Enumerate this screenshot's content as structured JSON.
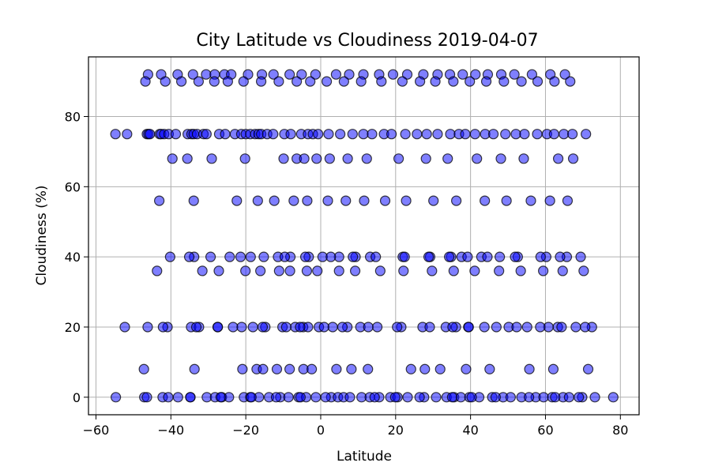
{
  "chart_data": {
    "type": "scatter",
    "title": "City Latitude vs Cloudiness 2019-04-07",
    "xlabel": "Latitude",
    "ylabel": "Cloudiness (%)",
    "xlim": [
      -62,
      85
    ],
    "ylim": [
      -5,
      97
    ],
    "xticks": [
      -60,
      -40,
      -20,
      0,
      20,
      40,
      60,
      80
    ],
    "yticks": [
      0,
      20,
      40,
      60,
      80
    ],
    "xtick_labels": [
      "−60",
      "−40",
      "−20",
      "0",
      "20",
      "40",
      "60",
      "80"
    ],
    "ytick_labels": [
      "0",
      "20",
      "40",
      "60",
      "80"
    ],
    "grid": true,
    "marker_fill": "#0000ff",
    "marker_opacity": 0.5,
    "marker_edge": "#000000",
    "x": [
      -54.8,
      -51.7,
      -46.4,
      -46,
      -45.6,
      -43,
      -42.6,
      -41.8,
      -40.6,
      -38.7,
      -35.5,
      -34.5,
      -33.9,
      -33,
      -31.3,
      -30.5,
      -27.1,
      -25.5,
      -22.9,
      -21.2,
      -20,
      -18.8,
      -17.5,
      -16.6,
      -15.9,
      -14.3,
      -12.7,
      -9.7,
      -8,
      -5.2,
      -3.4,
      -2.1,
      -0.7,
      2.1,
      5.2,
      8.5,
      11.4,
      13.7,
      16.9,
      18.9,
      22.6,
      25.7,
      28.3,
      31.2,
      34.6,
      36.9,
      38.6,
      41.2,
      43.9,
      46.1,
      49.3,
      52.1,
      54.4,
      57.8,
      60.4,
      62.3,
      64.9,
      67.2,
      70.8,
      -54.7,
      -47.1,
      -42.2,
      -40.7,
      -38.1,
      -34.8,
      -30.4,
      -28.2,
      -26.4,
      -24.5,
      -20.5,
      -18.8,
      -16.5,
      -13.8,
      -10.8,
      -8.6,
      -5.9,
      -3.9,
      -1.3,
      2.8,
      4.6,
      6.1,
      10.9,
      13.1,
      15.6,
      18.6,
      20.5,
      23.2,
      27.6,
      30.8,
      33.6,
      35.6,
      37.4,
      39.7,
      42.3,
      45.8,
      48.7,
      50.7,
      53.6,
      57.4,
      59.5,
      61.8,
      64.7,
      66.3,
      69.8,
      73.2,
      78.1,
      -46.4,
      -34.8,
      -26.7,
      -18.5,
      -11.9,
      -5.4,
      1.3,
      7.8,
      14.4,
      19.9,
      26.4,
      35.1,
      40.3,
      46.7,
      55.6,
      62.6,
      68.9,
      -52.3,
      -40.9,
      -34.6,
      -32.5,
      -27.5,
      -23.4,
      -18.1,
      -14.8,
      -10.2,
      -6.8,
      -4.7,
      -3.4,
      -0.5,
      3.2,
      7.1,
      10.6,
      15.1,
      21.5,
      27.2,
      33.4,
      36.1,
      39.4,
      43.7,
      50.2,
      55.1,
      60.8,
      63.3,
      68.1,
      72.4,
      -40.2,
      -33.8,
      -24.3,
      -18.7,
      -11.4,
      -8.1,
      -3.2,
      0.5,
      4.9,
      9.3,
      13.2,
      21.9,
      29.2,
      34.8,
      37.6,
      42.9,
      47.8,
      52.6,
      60.2,
      65.7,
      -35.1,
      -29.4,
      -21.4,
      -15.2,
      -9.6,
      -4.1,
      2.7,
      8.6,
      14.7,
      22.4,
      28.8,
      34.3,
      39.2,
      44.5,
      51.9,
      58.7,
      63.9,
      69.4,
      -47.2,
      -33.7,
      -20.9,
      -17.1,
      -15.4,
      -11.7,
      -8.3,
      -4.6,
      -2.4,
      4.2,
      8.2,
      12.6,
      24.1,
      27.8,
      31.9,
      38.8,
      45.1,
      55.7,
      62.1,
      71.4,
      -46.2,
      -42.1,
      -33.2,
      -27.5,
      -21.1,
      -15.5,
      -9.2,
      -5.5,
      0.9,
      5.8,
      12.7,
      20.4,
      29.1,
      35.2,
      39.5,
      46.9,
      52.3,
      58.6,
      64.3,
      70.6,
      -46.1,
      -42.6,
      -38.2,
      -34.1,
      -30.6,
      -28.3,
      -25.7,
      -23.9,
      -19.4,
      -15.7,
      -12.6,
      -8.3,
      -5.1,
      -1.4,
      4.1,
      7.6,
      11.4,
      15.6,
      19.3,
      23.1,
      27.4,
      31.2,
      34.5,
      37.9,
      41.3,
      44.6,
      48.2,
      51.7,
      56.4,
      61.3,
      65.2,
      -46.8,
      -41.5,
      -37.2,
      -32.6,
      -28.4,
      -24.8,
      -20.6,
      -15.9,
      -11.2,
      -6.4,
      -2.8,
      1.6,
      6.2,
      10.8,
      16.2,
      21.8,
      26.5,
      30.6,
      35.4,
      39.8,
      44.2,
      48.9,
      53.6,
      57.9,
      62.4,
      66.6,
      -39.6,
      -35.6,
      -29.1,
      -20.2,
      -9.9,
      -6.4,
      -4.4,
      -1.1,
      2.4,
      7.2,
      12.3,
      20.8,
      28.1,
      33.9,
      41.7,
      48.1,
      54.2,
      63.4,
      67.4,
      -43.1,
      -33.9,
      -22.4,
      -16.8,
      -12.4,
      -7.2,
      -3.6,
      1.9,
      6.7,
      11.6,
      17.2,
      22.8,
      30.1,
      36.2,
      43.8,
      49.6,
      56.1,
      61.2,
      65.9,
      -43.7,
      -31.6,
      -27.2,
      -20.1,
      -16.1,
      -11.1,
      -8.2,
      -3.7,
      -0.9,
      4.9,
      9.2,
      15.9,
      22.1,
      29.7,
      35.5,
      41.1,
      47.6,
      53.4,
      59.4,
      64.6,
      70.2
    ],
    "y": [
      75,
      75,
      75,
      75,
      75,
      75,
      75,
      75,
      75,
      75,
      75,
      75,
      75,
      75,
      75,
      75,
      75,
      75,
      75,
      75,
      75,
      75,
      75,
      75,
      75,
      75,
      75,
      75,
      75,
      75,
      75,
      75,
      75,
      75,
      75,
      75,
      75,
      75,
      75,
      75,
      75,
      75,
      75,
      75,
      75,
      75,
      75,
      75,
      75,
      75,
      75,
      75,
      75,
      75,
      75,
      75,
      75,
      75,
      75,
      0,
      0,
      0,
      0,
      0,
      0,
      0,
      0,
      0,
      0,
      0,
      0,
      0,
      0,
      0,
      0,
      0,
      0,
      0,
      0,
      0,
      0,
      0,
      0,
      0,
      0,
      0,
      0,
      0,
      0,
      0,
      0,
      0,
      0,
      0,
      0,
      0,
      0,
      0,
      0,
      0,
      0,
      0,
      0,
      0,
      0,
      0,
      0,
      0,
      0,
      0,
      0,
      0,
      0,
      0,
      0,
      0,
      0,
      0,
      0,
      0,
      0,
      0,
      0,
      20,
      20,
      20,
      20,
      20,
      20,
      20,
      20,
      20,
      20,
      20,
      20,
      20,
      20,
      20,
      20,
      20,
      20,
      20,
      20,
      20,
      20,
      20,
      20,
      20,
      20,
      20,
      20,
      20,
      40,
      40,
      40,
      40,
      40,
      40,
      40,
      40,
      40,
      40,
      40,
      40,
      40,
      40,
      40,
      40,
      40,
      40,
      40,
      40,
      40,
      40,
      40,
      40,
      40,
      40,
      40,
      40,
      40,
      40,
      40,
      40,
      40,
      40,
      40,
      40,
      40,
      40,
      8,
      8,
      8,
      8,
      8,
      8,
      8,
      8,
      8,
      8,
      8,
      8,
      8,
      8,
      8,
      8,
      8,
      8,
      8,
      8,
      20,
      20,
      20,
      20,
      20,
      20,
      20,
      20,
      20,
      20,
      20,
      20,
      20,
      20,
      20,
      20,
      20,
      20,
      20,
      20,
      92,
      92,
      92,
      92,
      92,
      92,
      92,
      92,
      92,
      92,
      92,
      92,
      92,
      92,
      92,
      92,
      92,
      92,
      92,
      92,
      92,
      92,
      92,
      92,
      92,
      92,
      92,
      92,
      92,
      92,
      92,
      90,
      90,
      90,
      90,
      90,
      90,
      90,
      90,
      90,
      90,
      90,
      90,
      90,
      90,
      90,
      90,
      90,
      90,
      90,
      90,
      90,
      90,
      90,
      90,
      90,
      90,
      68,
      68,
      68,
      68,
      68,
      68,
      68,
      68,
      68,
      68,
      68,
      68,
      68,
      68,
      68,
      68,
      68,
      68,
      68,
      56,
      56,
      56,
      56,
      56,
      56,
      56,
      56,
      56,
      56,
      56,
      56,
      56,
      56,
      56,
      56,
      56,
      56,
      56,
      36,
      36,
      36,
      36,
      36,
      36,
      36,
      36,
      36,
      36,
      36,
      36,
      36,
      36,
      36,
      36,
      36,
      36,
      36,
      36,
      36
    ]
  }
}
